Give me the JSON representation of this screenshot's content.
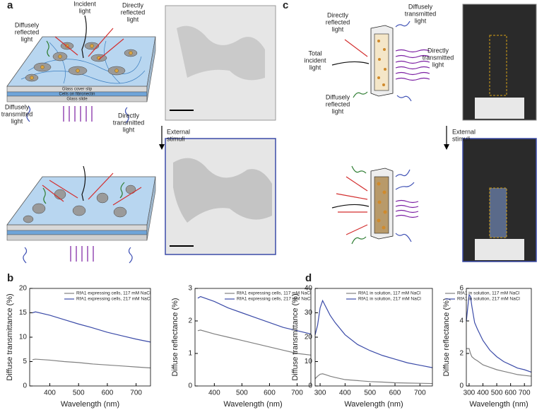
{
  "panels": {
    "a": "a",
    "b": "b",
    "c": "c",
    "d": "d"
  },
  "panel_a": {
    "incident_light": [
      "Incident",
      "light"
    ],
    "diffusely_reflected": [
      "Diffusely",
      "reflected",
      "light"
    ],
    "directly_reflected": [
      "Directly",
      "reflected",
      "light"
    ],
    "glass_cover_slip": "Glass cover slip",
    "cells_on_fibronectin": "Cells on fibronectin",
    "glass_slide": "Glass slide",
    "diffusely_transmitted": [
      "Diffusely",
      "transmitted",
      "light"
    ],
    "directly_transmitted": [
      "Directly",
      "transmitted",
      "light"
    ],
    "external_stimuli": [
      "External",
      "stimuli"
    ]
  },
  "panel_c": {
    "directly_reflected": [
      "Directly",
      "reflected",
      "light"
    ],
    "diffusely_transmitted": [
      "Diffusely",
      "transmitted",
      "light"
    ],
    "total_incident": [
      "Total",
      "incident",
      "light"
    ],
    "directly_transmitted": [
      "Directly",
      "transmitted",
      "light"
    ],
    "diffusely_reflected": [
      "Diffusely",
      "reflected",
      "light"
    ],
    "external_stimuli": [
      "External",
      "stimuli"
    ]
  },
  "chart_data": [
    {
      "type": "line",
      "xlabel": "Wavelength (nm)",
      "ylabel": "Diffuse transmittance (%)",
      "x": [
        340,
        350,
        400,
        450,
        500,
        550,
        600,
        650,
        700,
        750
      ],
      "xlim": [
        330,
        750
      ],
      "xticks": [
        400,
        500,
        600,
        700
      ],
      "ylim": [
        0,
        20
      ],
      "yticks": [
        0,
        5,
        10,
        15,
        20
      ],
      "legend": "upper right",
      "series": [
        {
          "name": "RfA1 expressing cells, 117 mM NaCl",
          "color": "#808080",
          "values": [
            5.4,
            5.5,
            5.3,
            5.0,
            4.8,
            4.5,
            4.3,
            4.1,
            3.9,
            3.7
          ]
        },
        {
          "name": "RfA1 expressing cells, 217 mM NaCl",
          "color": "#3b4ba8",
          "values": [
            15.0,
            15.2,
            14.5,
            13.6,
            12.7,
            11.9,
            11.0,
            10.3,
            9.6,
            9.0
          ]
        }
      ]
    },
    {
      "type": "line",
      "xlabel": "Wavelength (nm)",
      "ylabel": "Diffuse reflectance (%)",
      "x": [
        340,
        350,
        400,
        450,
        500,
        550,
        600,
        650,
        700,
        750
      ],
      "xlim": [
        330,
        750
      ],
      "xticks": [
        400,
        500,
        600,
        700
      ],
      "ylim": [
        0,
        3
      ],
      "yticks": [
        0,
        1,
        2,
        3
      ],
      "legend": "upper right",
      "series": [
        {
          "name": "RfA1 expressing cells, 117 mM NaCl",
          "color": "#808080",
          "values": [
            1.7,
            1.72,
            1.6,
            1.5,
            1.4,
            1.3,
            1.2,
            1.1,
            1.0,
            0.95
          ]
        },
        {
          "name": "RfA1 expressing cells, 217 mM NaCl",
          "color": "#3b4ba8",
          "values": [
            2.7,
            2.75,
            2.6,
            2.4,
            2.25,
            2.1,
            1.95,
            1.8,
            1.7,
            1.6
          ]
        }
      ]
    },
    {
      "type": "line",
      "xlabel": "Wavelength (nm)",
      "ylabel": "Diffuse transmittance (%)",
      "x": [
        280,
        290,
        300,
        310,
        320,
        340,
        360,
        400,
        450,
        500,
        550,
        600,
        650,
        700,
        750
      ],
      "xlim": [
        280,
        750
      ],
      "xticks": [
        300,
        400,
        500,
        600,
        700
      ],
      "ylim": [
        0,
        40
      ],
      "yticks": [
        0,
        10,
        20,
        30,
        40
      ],
      "legend": "upper right",
      "series": [
        {
          "name": "RfA1 in solution, 117 mM NaCl",
          "color": "#808080",
          "values": [
            3,
            4,
            4.8,
            5,
            4.7,
            4,
            3.5,
            2.6,
            2.2,
            1.8,
            1.6,
            1.3,
            1.2,
            1.1,
            1.0
          ]
        },
        {
          "name": "RfA1 in solution, 217 mM NaCl",
          "color": "#3b4ba8",
          "values": [
            21,
            25,
            32,
            35,
            33,
            29,
            26,
            21,
            17,
            14.5,
            12.5,
            11,
            9.5,
            8.5,
            7.5
          ]
        }
      ]
    },
    {
      "type": "line",
      "xlabel": "Wavelength (nm)",
      "ylabel": "Diffuse reflectance (%)",
      "x": [
        280,
        290,
        300,
        310,
        320,
        340,
        360,
        400,
        450,
        500,
        550,
        600,
        650,
        700,
        750
      ],
      "xlim": [
        280,
        750
      ],
      "xticks": [
        300,
        400,
        500,
        600,
        700
      ],
      "ylim": [
        0,
        6
      ],
      "yticks": [
        0,
        2,
        4,
        6
      ],
      "legend": "upper right",
      "series": [
        {
          "name": "RfA1 in solution, 117 mM NaCl",
          "color": "#808080",
          "values": [
            2.3,
            2.3,
            2.3,
            2.0,
            1.8,
            1.65,
            1.55,
            1.3,
            1.15,
            1.0,
            0.9,
            0.8,
            0.7,
            0.65,
            0.6
          ]
        },
        {
          "name": "RfA1 in solution, 217 mM NaCl",
          "color": "#3b4ba8",
          "values": [
            4,
            4.8,
            5.6,
            5.5,
            4.9,
            3.9,
            3.5,
            2.8,
            2.2,
            1.8,
            1.5,
            1.3,
            1.1,
            1.0,
            0.85
          ]
        }
      ]
    }
  ]
}
